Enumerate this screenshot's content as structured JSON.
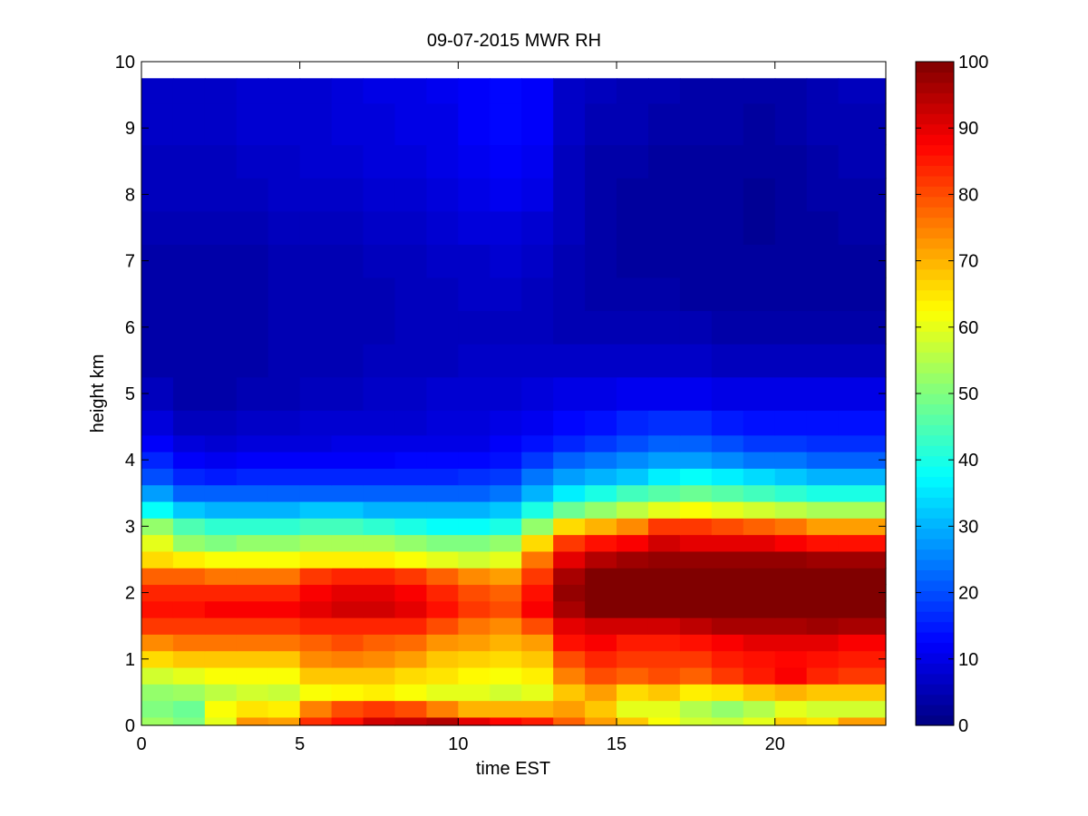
{
  "chart_data": {
    "type": "heatmap",
    "title": "09-07-2015 MWR RH",
    "xlabel": "time EST",
    "ylabel": "height km",
    "xlim": [
      0,
      23.5
    ],
    "ylim": [
      0,
      10
    ],
    "x_ticks": [
      "0",
      "5",
      "10",
      "15",
      "20"
    ],
    "y_ticks": [
      "0",
      "1",
      "2",
      "3",
      "4",
      "5",
      "6",
      "7",
      "8",
      "9",
      "10"
    ],
    "colorbar": {
      "colormap": "jet",
      "range": [
        0,
        100
      ],
      "ticks": [
        "0",
        "10",
        "20",
        "30",
        "40",
        "50",
        "60",
        "70",
        "80",
        "90",
        "100"
      ]
    },
    "grid": false,
    "x_bin_edges_hours": [
      0,
      1,
      2,
      3,
      4,
      5,
      6,
      7,
      8,
      9,
      10,
      11,
      12,
      13,
      14,
      15,
      16,
      17,
      18,
      19,
      20,
      21,
      22,
      23.5
    ],
    "profile_heights_km": [
      0,
      0.25,
      0.5,
      0.75,
      1.0,
      1.25,
      1.5,
      1.75,
      2.0,
      2.25,
      2.5,
      2.75,
      3.0,
      3.25,
      3.5,
      3.75,
      4.0,
      4.25,
      4.5,
      5.0,
      5.5,
      6.0,
      6.5,
      7.0,
      7.5,
      8.0,
      8.5,
      9.0,
      9.75
    ],
    "rh_percent": [
      [
        53,
        50,
        60,
        73,
        72,
        83,
        86,
        92,
        93,
        95,
        90,
        87,
        85,
        78,
        72,
        68,
        62,
        58,
        57,
        60,
        67,
        65,
        72
      ],
      [
        50,
        48,
        62,
        65,
        64,
        75,
        80,
        82,
        80,
        75,
        70,
        70,
        70,
        72,
        68,
        60,
        60,
        55,
        52,
        55,
        60,
        58,
        58
      ],
      [
        52,
        53,
        56,
        58,
        57,
        62,
        63,
        64,
        62,
        60,
        60,
        58,
        60,
        68,
        72,
        66,
        68,
        64,
        65,
        68,
        70,
        68,
        68
      ],
      [
        58,
        60,
        62,
        62,
        62,
        68,
        68,
        68,
        66,
        65,
        63,
        62,
        64,
        75,
        80,
        78,
        80,
        78,
        82,
        85,
        88,
        84,
        82
      ],
      [
        66,
        68,
        68,
        68,
        68,
        74,
        75,
        74,
        72,
        68,
        67,
        66,
        68,
        80,
        84,
        82,
        82,
        82,
        85,
        86,
        87,
        86,
        85
      ],
      [
        74,
        76,
        76,
        76,
        76,
        78,
        80,
        78,
        77,
        73,
        72,
        70,
        72,
        86,
        88,
        85,
        85,
        86,
        88,
        90,
        90,
        90,
        88
      ],
      [
        82,
        82,
        82,
        82,
        82,
        84,
        84,
        84,
        84,
        80,
        76,
        74,
        80,
        90,
        92,
        92,
        92,
        94,
        96,
        96,
        96,
        97,
        96
      ],
      [
        86,
        86,
        88,
        88,
        88,
        90,
        92,
        92,
        90,
        86,
        82,
        80,
        88,
        96,
        100,
        100,
        100,
        100,
        100,
        100,
        100,
        100,
        100
      ],
      [
        84,
        84,
        84,
        84,
        84,
        88,
        90,
        90,
        88,
        84,
        80,
        78,
        86,
        98,
        100,
        100,
        100,
        100,
        100,
        100,
        100,
        100,
        100
      ],
      [
        78,
        78,
        76,
        76,
        76,
        82,
        84,
        84,
        82,
        78,
        74,
        72,
        82,
        96,
        100,
        100,
        100,
        100,
        100,
        100,
        100,
        100,
        100
      ],
      [
        66,
        64,
        62,
        62,
        62,
        64,
        64,
        64,
        62,
        60,
        58,
        60,
        76,
        90,
        95,
        97,
        98,
        98,
        98,
        98,
        98,
        97,
        97
      ],
      [
        60,
        52,
        50,
        52,
        52,
        54,
        54,
        54,
        52,
        50,
        50,
        52,
        66,
        82,
        86,
        88,
        92,
        90,
        90,
        90,
        88,
        86,
        86
      ],
      [
        52,
        45,
        42,
        42,
        42,
        44,
        44,
        42,
        40,
        38,
        38,
        40,
        52,
        66,
        70,
        74,
        82,
        82,
        80,
        78,
        76,
        72,
        72
      ],
      [
        38,
        32,
        30,
        30,
        30,
        32,
        32,
        30,
        30,
        30,
        30,
        32,
        40,
        48,
        52,
        56,
        60,
        62,
        60,
        58,
        56,
        54,
        54
      ],
      [
        28,
        22,
        22,
        22,
        22,
        22,
        22,
        22,
        22,
        22,
        22,
        24,
        30,
        36,
        40,
        44,
        46,
        48,
        46,
        44,
        42,
        40,
        40
      ],
      [
        20,
        16,
        15,
        16,
        16,
        16,
        16,
        16,
        16,
        16,
        17,
        18,
        24,
        28,
        30,
        32,
        36,
        38,
        36,
        34,
        32,
        30,
        30
      ],
      [
        16,
        12,
        11,
        12,
        12,
        12,
        12,
        12,
        13,
        13,
        13,
        14,
        18,
        22,
        24,
        26,
        28,
        28,
        26,
        24,
        24,
        22,
        22
      ],
      [
        12,
        9,
        8,
        9,
        9,
        9,
        10,
        10,
        10,
        10,
        10,
        12,
        14,
        16,
        18,
        20,
        22,
        22,
        20,
        18,
        18,
        17,
        17
      ],
      [
        9,
        6,
        6,
        7,
        7,
        8,
        8,
        8,
        8,
        9,
        9,
        10,
        11,
        13,
        14,
        16,
        17,
        17,
        15,
        14,
        14,
        14,
        14
      ],
      [
        6,
        4,
        4,
        5,
        5,
        6,
        6,
        7,
        7,
        8,
        8,
        8,
        9,
        10,
        10,
        11,
        11,
        11,
        10,
        10,
        10,
        10,
        10
      ],
      [
        4,
        4,
        4,
        4,
        5,
        5,
        5,
        6,
        6,
        6,
        7,
        7,
        7,
        7,
        7,
        7,
        7,
        7,
        6,
        6,
        6,
        6,
        6
      ],
      [
        4,
        4,
        4,
        4,
        5,
        5,
        5,
        5,
        6,
        6,
        6,
        6,
        6,
        5,
        5,
        5,
        5,
        5,
        4,
        4,
        4,
        4,
        4
      ],
      [
        4,
        4,
        4,
        4,
        5,
        5,
        5,
        5,
        6,
        6,
        7,
        7,
        6,
        5,
        4,
        4,
        4,
        3,
        3,
        3,
        3,
        3,
        3
      ],
      [
        4,
        4,
        4,
        4,
        5,
        5,
        5,
        6,
        6,
        7,
        7,
        8,
        7,
        5,
        4,
        3,
        3,
        3,
        3,
        3,
        3,
        3,
        3
      ],
      [
        5,
        5,
        5,
        5,
        6,
        6,
        6,
        7,
        7,
        8,
        9,
        9,
        8,
        6,
        4,
        3,
        3,
        3,
        3,
        2,
        3,
        3,
        4
      ],
      [
        6,
        6,
        6,
        6,
        7,
        7,
        7,
        8,
        8,
        9,
        10,
        11,
        10,
        6,
        4,
        3,
        3,
        3,
        3,
        2,
        3,
        4,
        4
      ],
      [
        6,
        6,
        6,
        7,
        7,
        8,
        8,
        9,
        9,
        10,
        11,
        12,
        11,
        6,
        4,
        4,
        3,
        3,
        3,
        3,
        3,
        4,
        5
      ],
      [
        7,
        7,
        7,
        8,
        8,
        8,
        9,
        9,
        10,
        10,
        12,
        13,
        12,
        7,
        5,
        5,
        4,
        4,
        4,
        3,
        4,
        5,
        5
      ],
      [
        7,
        7,
        7,
        8,
        8,
        8,
        9,
        10,
        10,
        11,
        12,
        13,
        12,
        7,
        6,
        5,
        5,
        4,
        4,
        4,
        4,
        5,
        6
      ]
    ]
  }
}
